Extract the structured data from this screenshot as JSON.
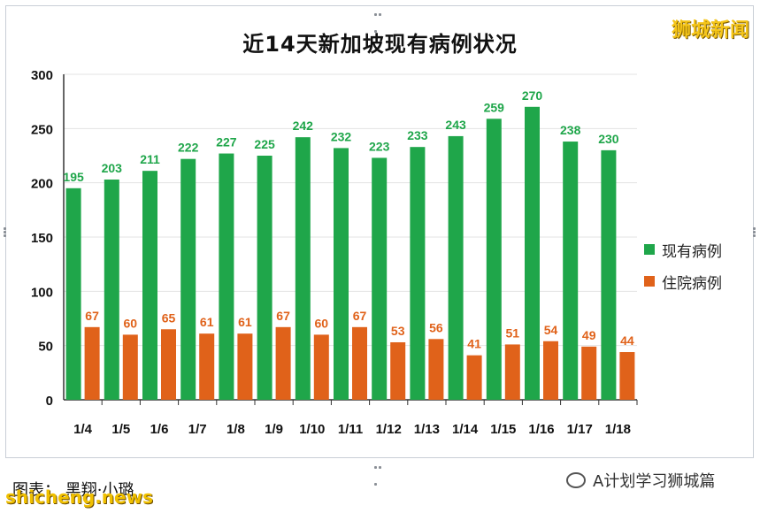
{
  "chart_data": {
    "type": "bar",
    "title": "近14天新加坡现有病例状况",
    "categories": [
      "1/4",
      "1/5",
      "1/6",
      "1/7",
      "1/8",
      "1/9",
      "1/10",
      "1/11",
      "1/12",
      "1/13",
      "1/14",
      "1/15",
      "1/16",
      "1/17",
      "1/18"
    ],
    "series": [
      {
        "name": "现有病例",
        "color": "#1fa64a",
        "label_color": "#1fa64a",
        "values": [
          195,
          203,
          211,
          222,
          227,
          225,
          242,
          232,
          223,
          233,
          243,
          259,
          270,
          238,
          230
        ]
      },
      {
        "name": "住院病例",
        "color": "#e0621a",
        "label_color": "#e0621a",
        "values": [
          67,
          60,
          65,
          61,
          61,
          67,
          60,
          67,
          53,
          56,
          41,
          51,
          54,
          49,
          44
        ]
      }
    ],
    "ylim": [
      0,
      300
    ],
    "yticks": [
      0,
      50,
      100,
      150,
      200,
      250,
      300
    ],
    "xlabel": "",
    "ylabel": "",
    "grid": true,
    "legend_position": "right"
  },
  "watermark_top": "狮城新闻",
  "caption": "图表：  黑翔·小璐",
  "source_watermark": "shicheng.news",
  "wechat_account": "A计划学习狮城篇"
}
